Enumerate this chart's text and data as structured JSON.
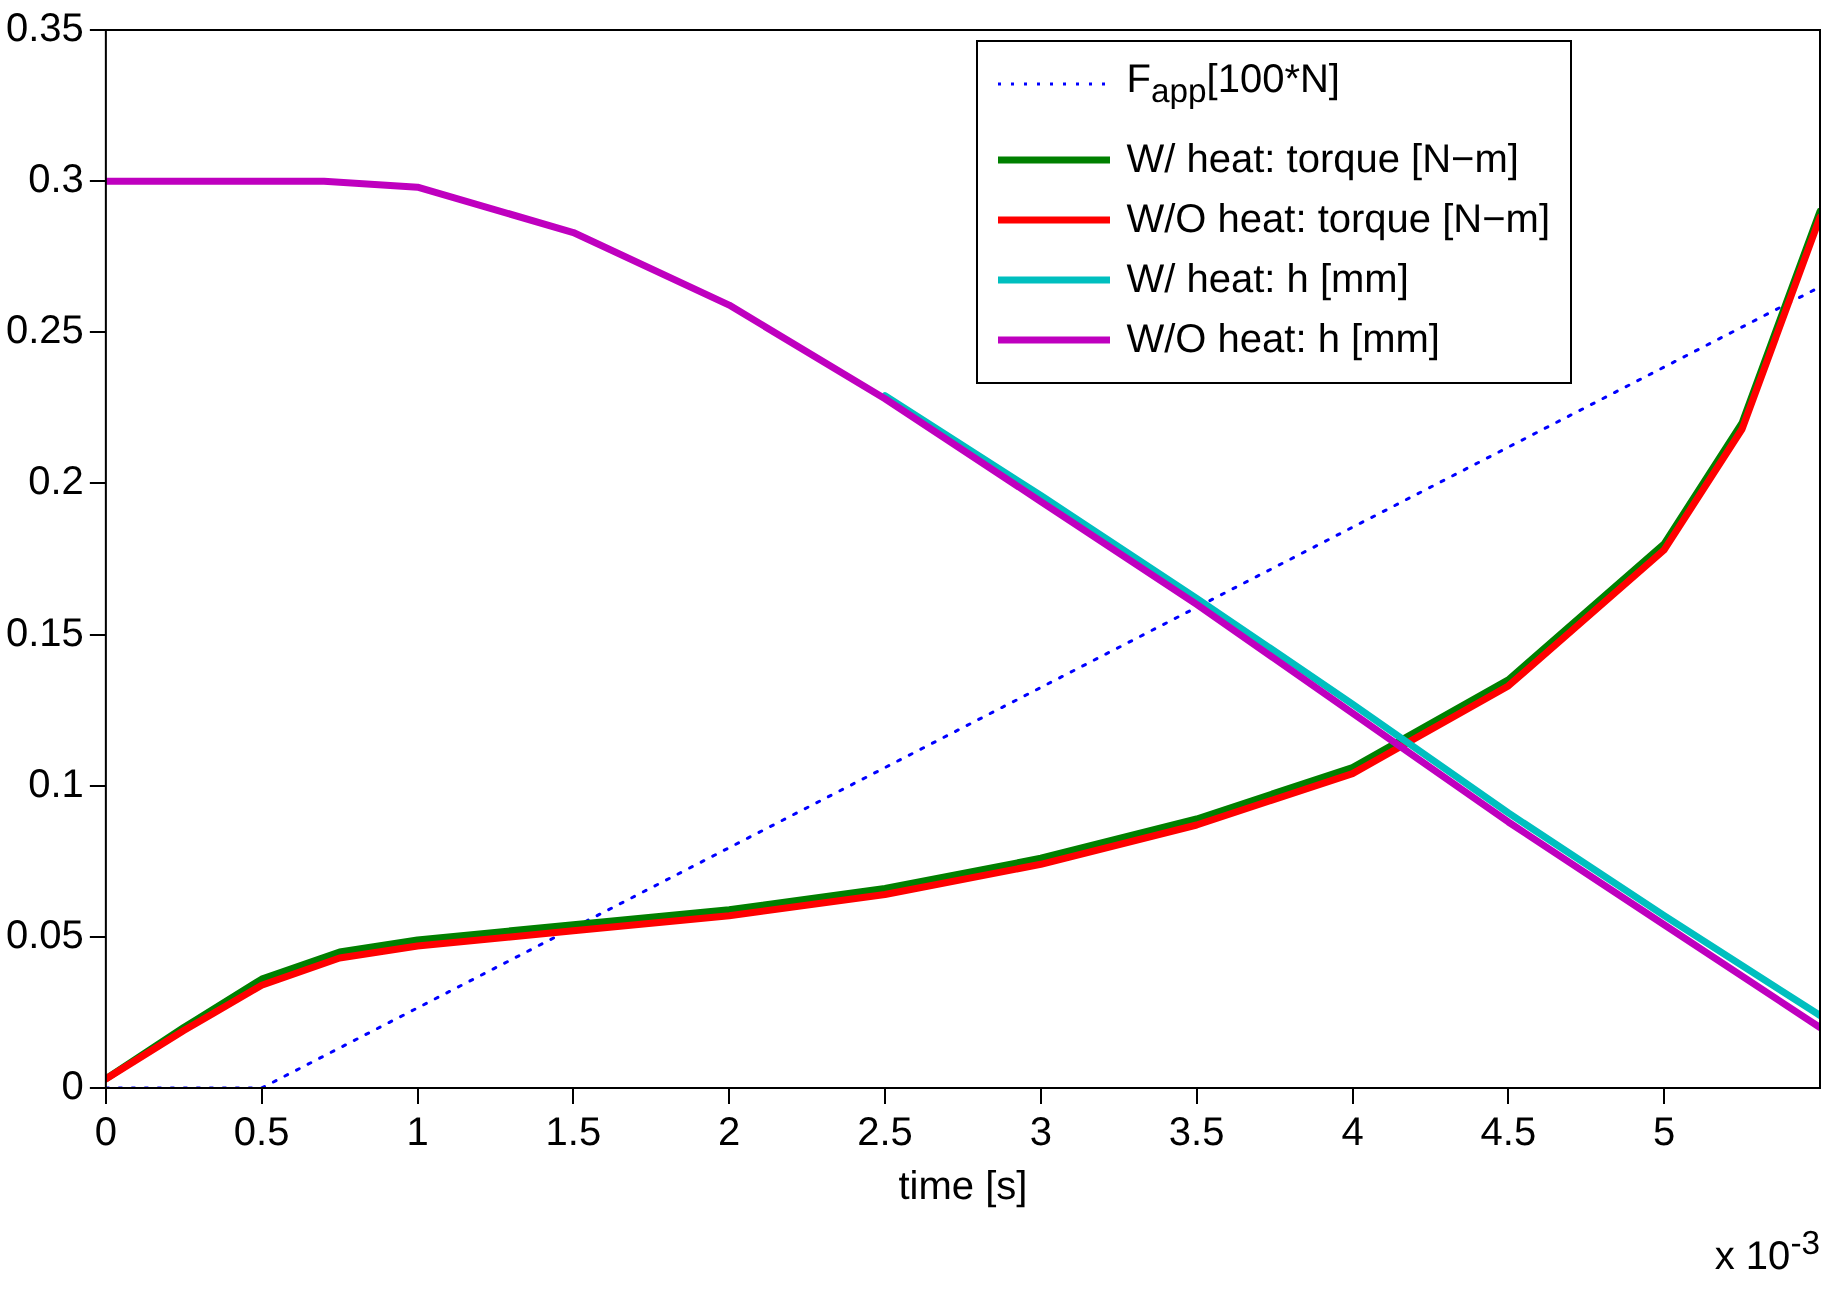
{
  "chart_data": {
    "type": "line",
    "xlabel": "time [s]",
    "annotations": [
      "x 10$^{-3}$"
    ],
    "xlim": [
      0,
      5.5
    ],
    "xticks": [
      0,
      0.5,
      1,
      1.5,
      2,
      2.5,
      3,
      3.5,
      4,
      4.5,
      5
    ],
    "ylim": [
      0,
      0.35
    ],
    "yticks": [
      0,
      0.05,
      0.1,
      0.15,
      0.2,
      0.25,
      0.3,
      0.35
    ],
    "grid": false,
    "legend": "top right",
    "marker": "none",
    "series": [
      {
        "name": "F$_{app}$[100*N]",
        "color": "#0000ff",
        "line_style": "dotted",
        "x": [
          0,
          0.5,
          5.5
        ],
        "values": [
          0,
          0,
          0.265
        ]
      },
      {
        "name": "W/ heat: torque [N−m]",
        "color": "#008000",
        "line_style": "solid",
        "x": [
          0,
          0.25,
          0.5,
          0.75,
          1,
          1.5,
          2,
          2.5,
          3,
          3.5,
          4,
          4.5,
          5,
          5.25,
          5.5
        ],
        "values": [
          0.003,
          0.02,
          0.036,
          0.045,
          0.049,
          0.054,
          0.059,
          0.066,
          0.076,
          0.089,
          0.106,
          0.135,
          0.18,
          0.22,
          0.29
        ]
      },
      {
        "name": "W/O heat: torque [N−m]",
        "color": "#ff0000",
        "line_style": "solid",
        "x": [
          0,
          0.25,
          0.5,
          0.75,
          1,
          1.5,
          2,
          2.5,
          3,
          3.5,
          4,
          4.5,
          5,
          5.25,
          5.5
        ],
        "values": [
          0.003,
          0.019,
          0.034,
          0.043,
          0.047,
          0.052,
          0.057,
          0.064,
          0.074,
          0.087,
          0.104,
          0.133,
          0.178,
          0.218,
          0.288
        ]
      },
      {
        "name": "W/ heat: h [mm]",
        "color": "#00bfbf",
        "line_style": "solid",
        "x": [
          2.5,
          3,
          3.5,
          4,
          4.5,
          5,
          5.5
        ],
        "values": [
          0.229,
          0.196,
          0.162,
          0.127,
          0.091,
          0.057,
          0.024
        ]
      },
      {
        "name": "W/O heat: h [mm]",
        "color": "#bf00bf",
        "line_style": "solid",
        "x": [
          0,
          0.5,
          0.7,
          1,
          1.5,
          2,
          2.5,
          3,
          3.5,
          4,
          4.5,
          5,
          5.5
        ],
        "values": [
          0.3,
          0.3,
          0.3,
          0.298,
          0.283,
          0.259,
          0.228,
          0.194,
          0.16,
          0.124,
          0.088,
          0.054,
          0.02
        ]
      }
    ]
  }
}
